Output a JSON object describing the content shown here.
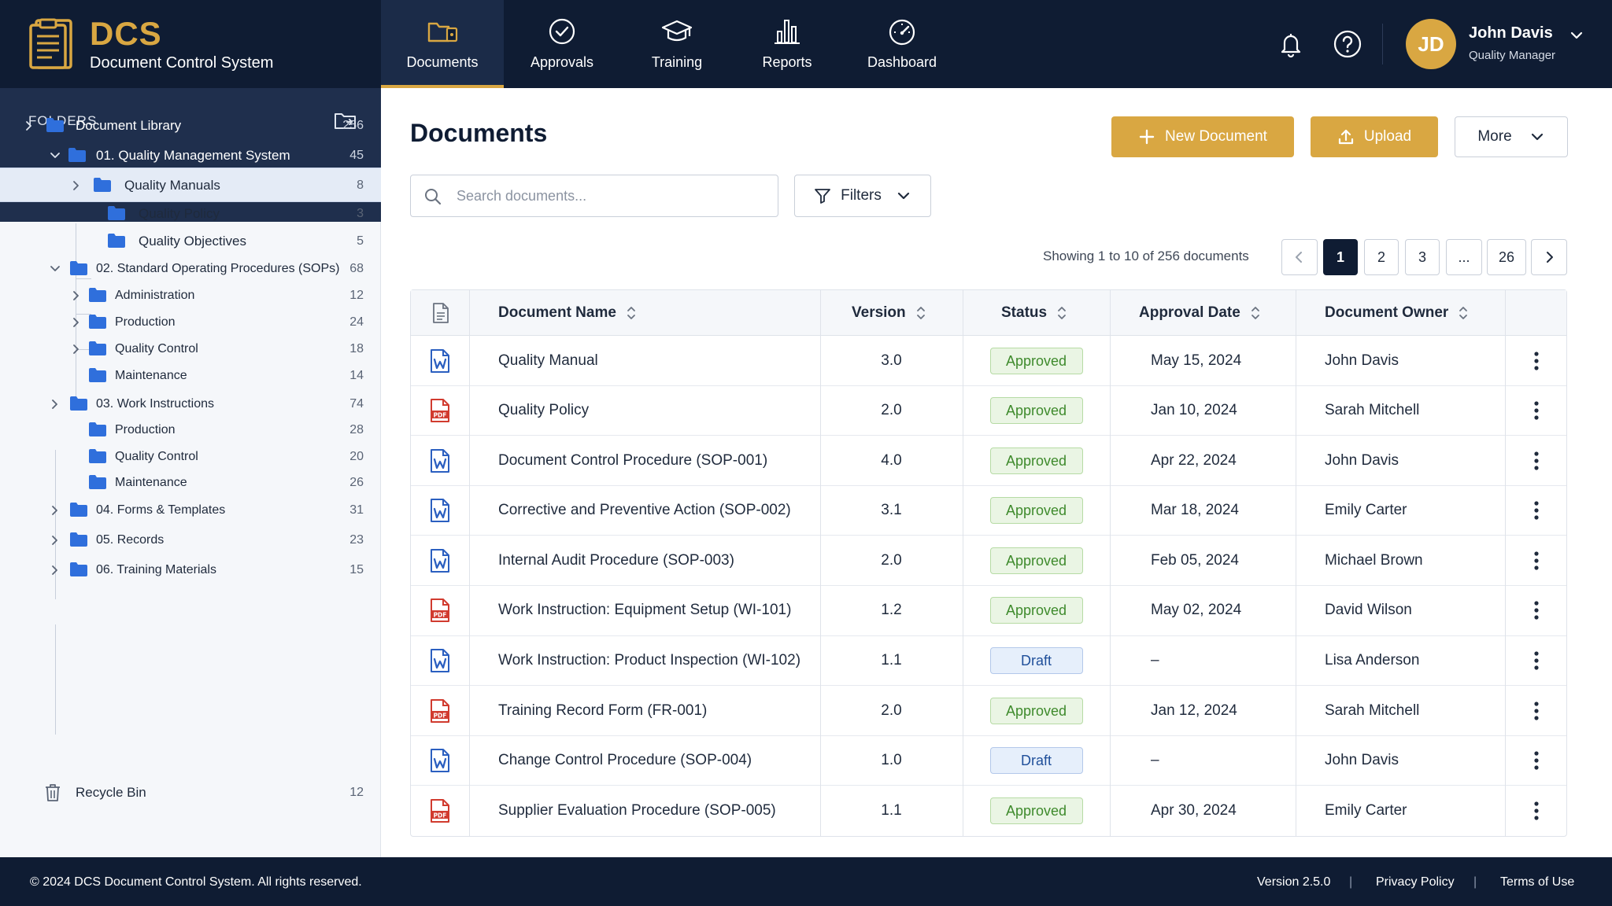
{
  "brand": {
    "name": "DCS",
    "subtitle": "Document Control System"
  },
  "nav": [
    {
      "label": "Documents",
      "icon": "documents-folder-icon",
      "active": true
    },
    {
      "label": "Approvals",
      "icon": "check-circle-icon"
    },
    {
      "label": "Training",
      "icon": "graduation-cap-icon"
    },
    {
      "label": "Reports",
      "icon": "bar-chart-icon"
    },
    {
      "label": "Dashboard",
      "icon": "gauge-icon"
    }
  ],
  "user": {
    "initials": "JD",
    "name": "John Davis",
    "role": "Quality Manager"
  },
  "sidebar": {
    "title": "FOLDERS",
    "tree": [
      {
        "label": "Document Library",
        "count": "256"
      },
      {
        "label": "01. Quality Management System",
        "count": "45"
      },
      {
        "label": "Quality Manuals",
        "count": "8"
      },
      {
        "label": "Quality Policy",
        "count": "3"
      },
      {
        "label": "Quality Objectives",
        "count": "5"
      },
      {
        "label": "02. Standard Operating Procedures (SOPs)",
        "count": "68"
      },
      {
        "label": "Administration",
        "count": "12"
      },
      {
        "label": "Production",
        "count": "24"
      },
      {
        "label": "Quality Control",
        "count": "18"
      },
      {
        "label": "Maintenance",
        "count": "14"
      },
      {
        "label": "03. Work Instructions",
        "count": "74"
      },
      {
        "label": "Production",
        "count": "28"
      },
      {
        "label": "Quality Control",
        "count": "20"
      },
      {
        "label": "Maintenance",
        "count": "26"
      },
      {
        "label": "04. Forms & Templates",
        "count": "31"
      },
      {
        "label": "05. Records",
        "count": "23"
      },
      {
        "label": "06. Training Materials",
        "count": "15"
      }
    ],
    "recycle": {
      "label": "Recycle Bin",
      "count": "12"
    }
  },
  "main": {
    "title": "Documents",
    "new_document_label": "New Document",
    "upload_label": "Upload",
    "more_label": "More",
    "search_placeholder": "Search documents...",
    "filters_label": "Filters",
    "showing": "Showing 1 to 10 of 256 documents",
    "pagination": [
      "1",
      "2",
      "3",
      "...",
      "26"
    ]
  },
  "table": {
    "columns": [
      "Document Name",
      "Version",
      "Status",
      "Approval Date",
      "Document Owner"
    ],
    "rows": [
      {
        "type": "word",
        "name": "Quality Manual",
        "version": "3.0",
        "status": "Approved",
        "date": "May 15, 2024",
        "owner": "John Davis"
      },
      {
        "type": "pdf",
        "name": "Quality Policy",
        "version": "2.0",
        "status": "Approved",
        "date": "Jan 10, 2024",
        "owner": "Sarah Mitchell"
      },
      {
        "type": "word",
        "name": "Document Control Procedure (SOP-001)",
        "version": "4.0",
        "status": "Approved",
        "date": "Apr 22, 2024",
        "owner": "John Davis"
      },
      {
        "type": "word",
        "name": "Corrective and Preventive Action (SOP-002)",
        "version": "3.1",
        "status": "Approved",
        "date": "Mar 18, 2024",
        "owner": "Emily Carter"
      },
      {
        "type": "word",
        "name": "Internal Audit Procedure (SOP-003)",
        "version": "2.0",
        "status": "Approved",
        "date": "Feb 05, 2024",
        "owner": "Michael Brown"
      },
      {
        "type": "pdf",
        "name": "Work Instruction: Equipment Setup (WI-101)",
        "version": "1.2",
        "status": "Approved",
        "date": "May 02, 2024",
        "owner": "David Wilson"
      },
      {
        "type": "word",
        "name": "Work Instruction: Product Inspection (WI-102)",
        "version": "1.1",
        "status": "Draft",
        "date": "–",
        "owner": "Lisa Anderson"
      },
      {
        "type": "pdf",
        "name": "Training Record Form (FR-001)",
        "version": "2.0",
        "status": "Approved",
        "date": "Jan 12, 2024",
        "owner": "Sarah Mitchell"
      },
      {
        "type": "word",
        "name": "Change Control Procedure (SOP-004)",
        "version": "1.0",
        "status": "Draft",
        "date": "–",
        "owner": "John Davis"
      },
      {
        "type": "pdf",
        "name": "Supplier Evaluation Procedure (SOP-005)",
        "version": "1.1",
        "status": "Approved",
        "date": "Apr 30, 2024",
        "owner": "Emily Carter"
      }
    ]
  },
  "footer": {
    "copyright": "© 2024 DCS Document Control System. All rights reserved.",
    "version": "Version 2.5.0",
    "privacy": "Privacy Policy",
    "terms": "Terms of Use"
  },
  "colors": {
    "navy": "#0f1c33",
    "gold": "#d9a742",
    "approved": "#3e8a2c",
    "draft": "#1f4f9a",
    "word_icon": "#2b5fc0",
    "pdf_icon": "#d13b2f",
    "folder": "#2f6fdc"
  }
}
